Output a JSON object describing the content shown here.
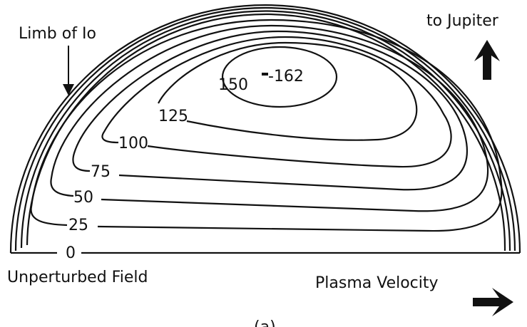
{
  "labels": {
    "limb": "Limb of Io",
    "jupiter": "to Jupiter",
    "unperturbed": "Unperturbed Field",
    "plasma": "Plasma Velocity",
    "panel": "(a)"
  },
  "contours": [
    "0",
    "25",
    "50",
    "75",
    "100",
    "125",
    "150",
    "-162"
  ]
}
